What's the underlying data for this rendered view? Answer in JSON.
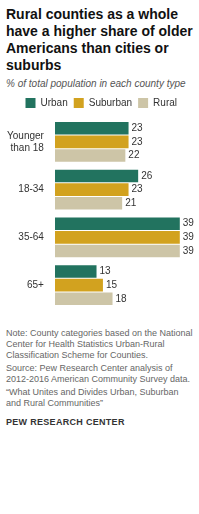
{
  "chart_data": {
    "type": "bar",
    "orientation": "horizontal",
    "title": "Rural counties as a whole have a higher share of older Americans than cities or suburbs",
    "subtitle": "% of total population in each county type",
    "categories": [
      "Younger than 18",
      "18-34",
      "35-64",
      "65+"
    ],
    "series": [
      {
        "name": "Urban",
        "color": "#22735f",
        "values": [
          23,
          26,
          39,
          13
        ]
      },
      {
        "name": "Suburban",
        "color": "#d2a21f",
        "values": [
          23,
          23,
          39,
          15
        ]
      },
      {
        "name": "Rural",
        "color": "#cdc5a7",
        "values": [
          22,
          21,
          39,
          18
        ]
      }
    ],
    "xlim": [
      0,
      40
    ],
    "grid": false,
    "legend": "top",
    "data_labels": true,
    "tick_labels": "y",
    "notes": [
      "Note: County categories based on the National Center for Health Statistics Urban-Rural Classification Scheme for Counties.",
      "Source: Pew Research Center analysis of 2012-2016 American Community Survey data.",
      "“What Unites and Divides Urban, Suburban and Rural Communities”"
    ],
    "credit": "PEW RESEARCH CENTER"
  }
}
